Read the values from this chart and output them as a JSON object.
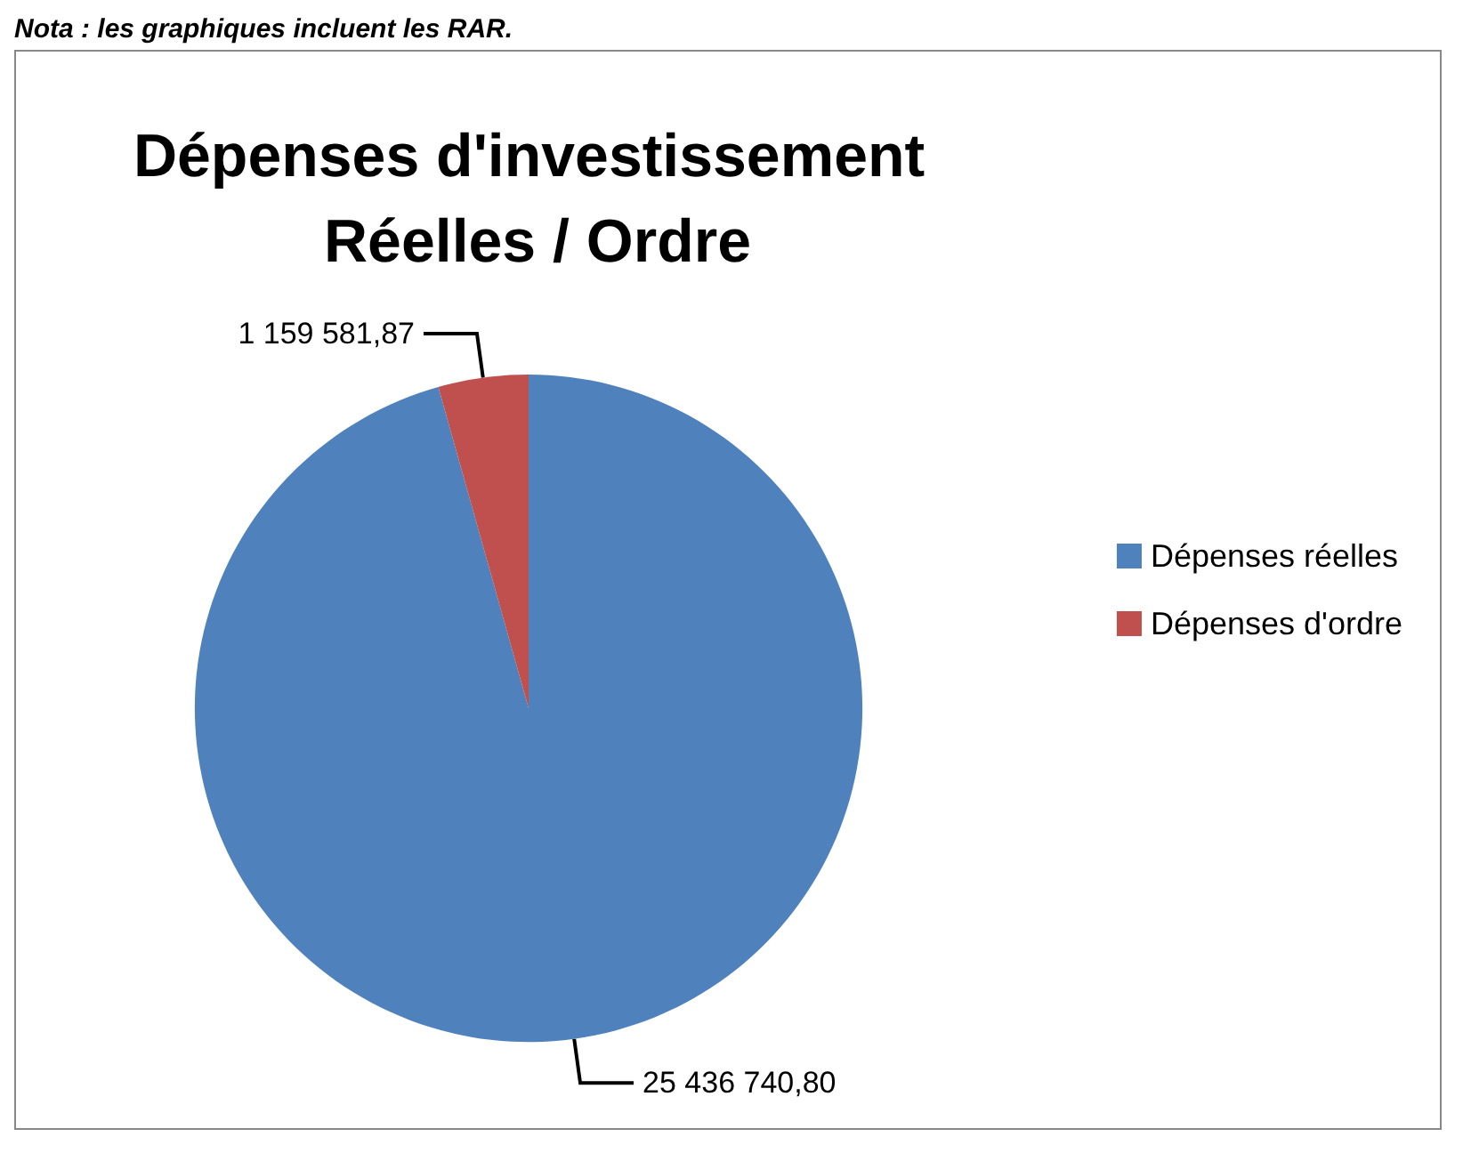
{
  "chart_data": {
    "type": "pie",
    "title": "Dépenses d'investissement Réelles / Ordre",
    "annotations": [
      "Nota : les graphiques incluent les RAR."
    ],
    "categories": [
      "Dépenses réelles",
      "Dépenses d'ordre"
    ],
    "values": [
      25436740.8,
      1159581.87
    ],
    "colors": [
      "#4f81bd",
      "#c0504d"
    ],
    "value_labels": [
      "25 436 740,80",
      "1 159 581,87"
    ],
    "legend": "right"
  }
}
